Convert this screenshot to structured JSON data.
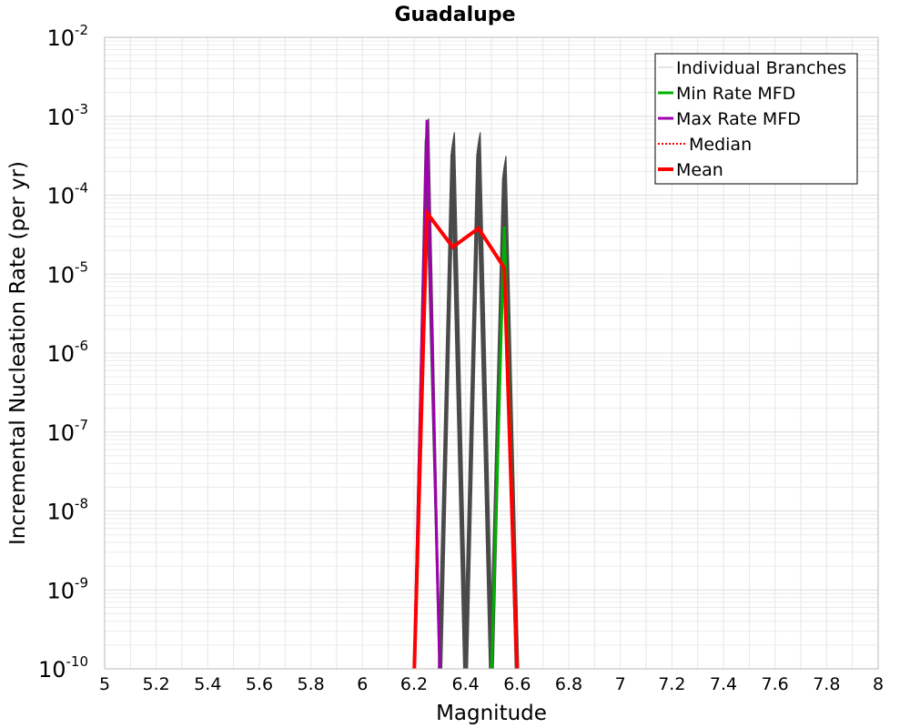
{
  "chart_data": {
    "type": "line",
    "title": "Guadalupe",
    "xlabel": "Magnitude",
    "ylabel": "Incremental Nucleation Rate (per yr)",
    "xlim": [
      5,
      8
    ],
    "ylim": [
      1e-10,
      0.01
    ],
    "yscale": "log",
    "grid": true,
    "xticks": [
      "5",
      "5.2",
      "5.4",
      "5.6",
      "5.8",
      "6",
      "6.2",
      "6.4",
      "6.6",
      "6.8",
      "7",
      "7.2",
      "7.4",
      "7.6",
      "7.8",
      "8"
    ],
    "yticks": [
      {
        "base": "10",
        "exp": "-2"
      },
      {
        "base": "10",
        "exp": "-3"
      },
      {
        "base": "10",
        "exp": "-4"
      },
      {
        "base": "10",
        "exp": "-5"
      },
      {
        "base": "10",
        "exp": "-6"
      },
      {
        "base": "10",
        "exp": "-7"
      },
      {
        "base": "10",
        "exp": "-8"
      },
      {
        "base": "10",
        "exp": "-9"
      },
      {
        "base": "10",
        "exp": "-10"
      }
    ],
    "legend_position": "top-right",
    "legend": [
      {
        "label": "Individual Branches",
        "color": "#c8c8c8",
        "style": "thin"
      },
      {
        "label": "Min Rate MFD",
        "color": "#00b000",
        "style": "solid"
      },
      {
        "label": "Max Rate MFD",
        "color": "#a000b0",
        "style": "solid"
      },
      {
        "label": "Median",
        "color": "#ff0000",
        "style": "dotted"
      },
      {
        "label": "Mean",
        "color": "#ff0000",
        "style": "thick"
      }
    ],
    "series": [
      {
        "name": "Individual Branches",
        "color": "#4a4a4a",
        "peaks": [
          {
            "x": [
              6.2,
              6.25,
              6.3
            ],
            "y": [
              1e-10,
              0.0009,
              1e-10
            ]
          },
          {
            "x": [
              6.25,
              6.3,
              6.35,
              6.4,
              6.45
            ],
            "y": [
              1e-10,
              1e-10,
              0.0006,
              1e-10,
              1e-10
            ]
          },
          {
            "x": [
              6.35,
              6.4,
              6.45,
              6.5,
              6.55
            ],
            "y": [
              1e-10,
              1e-10,
              0.0006,
              1e-10,
              1e-10
            ]
          },
          {
            "x": [
              6.45,
              6.5,
              6.55,
              6.6,
              6.65
            ],
            "y": [
              1e-10,
              1e-10,
              0.0003,
              1e-10,
              1e-10
            ]
          }
        ]
      },
      {
        "name": "Min Rate MFD",
        "color": "#00b000",
        "x": [
          6.5,
          6.55,
          6.6
        ],
        "y": [
          1e-10,
          4e-05,
          1e-10
        ]
      },
      {
        "name": "Max Rate MFD",
        "color": "#a000b0",
        "x": [
          6.2,
          6.25,
          6.3
        ],
        "y": [
          1e-10,
          0.0009,
          1e-10
        ]
      },
      {
        "name": "Median",
        "color": "#ff0000",
        "x": [
          6.2,
          6.25,
          6.35,
          6.45,
          6.55,
          6.6
        ],
        "y": [
          1e-10,
          6e-05,
          2.2e-05,
          3.8e-05,
          1.2e-05,
          1e-10
        ]
      },
      {
        "name": "Mean",
        "color": "#ff0000",
        "x": [
          6.2,
          6.25,
          6.35,
          6.45,
          6.55,
          6.6
        ],
        "y": [
          1e-10,
          6e-05,
          2.2e-05,
          3.8e-05,
          1.2e-05,
          1e-10
        ]
      }
    ]
  }
}
